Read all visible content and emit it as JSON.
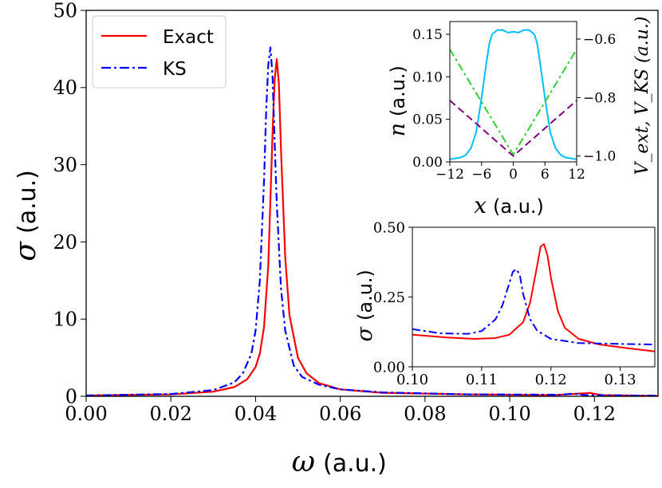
{
  "chart_data": [
    {
      "name": "main",
      "type": "line",
      "title": "",
      "xlabel_symbol": "ω",
      "xlabel_unit": "(a.u.)",
      "ylabel_symbol": "σ",
      "ylabel_unit": "(a.u.)",
      "xlim": [
        0.0,
        0.135
      ],
      "ylim": [
        0,
        50
      ],
      "xticks": [
        0.0,
        0.02,
        0.04,
        0.06,
        0.08,
        0.1,
        0.12
      ],
      "xtick_labels": [
        "0.00",
        "0.02",
        "0.04",
        "0.06",
        "0.08",
        "0.10",
        "0.12"
      ],
      "yticks": [
        0,
        10,
        20,
        30,
        40,
        50
      ],
      "ytick_labels": [
        "0",
        "10",
        "20",
        "30",
        "40",
        "50"
      ],
      "legend": {
        "placement": "top-left",
        "entries": [
          "Exact",
          "KS"
        ]
      },
      "series": [
        {
          "name": "Exact",
          "color": "#ff0000",
          "style": "solid",
          "x": [
            0.0,
            0.02,
            0.03,
            0.035,
            0.038,
            0.04,
            0.041,
            0.042,
            0.043,
            0.044,
            0.0445,
            0.045,
            0.0455,
            0.046,
            0.047,
            0.048,
            0.05,
            0.052,
            0.055,
            0.06,
            0.07,
            0.09,
            0.11,
            0.115,
            0.118,
            0.119,
            0.12,
            0.122,
            0.135
          ],
          "values": [
            0.1,
            0.25,
            0.6,
            1.2,
            2.2,
            3.8,
            5.5,
            9.0,
            17.0,
            34.0,
            41.0,
            43.7,
            40.5,
            32.0,
            18.0,
            10.5,
            5.0,
            3.0,
            1.7,
            0.9,
            0.45,
            0.25,
            0.15,
            0.3,
            0.4,
            0.44,
            0.32,
            0.15,
            0.06
          ]
        },
        {
          "name": "KS",
          "color": "#0000ff",
          "style": "dashdot",
          "x": [
            0.0,
            0.02,
            0.03,
            0.035,
            0.037,
            0.039,
            0.04,
            0.041,
            0.042,
            0.0425,
            0.043,
            0.0435,
            0.044,
            0.0445,
            0.045,
            0.046,
            0.047,
            0.049,
            0.051,
            0.055,
            0.06,
            0.07,
            0.09,
            0.112,
            0.115,
            0.118,
            0.135
          ],
          "values": [
            0.1,
            0.3,
            0.8,
            1.8,
            3.0,
            5.5,
            8.5,
            15.0,
            28.0,
            37.0,
            43.0,
            45.2,
            41.5,
            33.0,
            25.0,
            14.0,
            8.5,
            4.0,
            2.5,
            1.5,
            0.9,
            0.5,
            0.25,
            0.2,
            0.35,
            0.15,
            0.08
          ]
        }
      ]
    },
    {
      "name": "inset_density",
      "type": "line",
      "xlabel_symbol": "x",
      "xlabel_unit": "(a.u.)",
      "ylabel_symbol": "n",
      "ylabel_unit": "(a.u.)",
      "ylabel_right": "V_ext, V_KS (a.u.)",
      "xlim": [
        -12,
        12
      ],
      "ylim": [
        0.0,
        0.165
      ],
      "ylim_right": [
        -1.02,
        -0.54
      ],
      "xticks": [
        -12,
        -6,
        0,
        6,
        12
      ],
      "xtick_labels": [
        "−12",
        "−6",
        "0",
        "6",
        "12"
      ],
      "yticks": [
        0.0,
        0.05,
        0.1,
        0.15
      ],
      "ytick_labels": [
        "0.00",
        "0.05",
        "0.10",
        "0.15"
      ],
      "yticks_right": [
        -1.0,
        -0.8,
        -0.6
      ],
      "ytick_labels_right": [
        "−1.0",
        "−0.8",
        "−0.6"
      ],
      "series": [
        {
          "name": "n",
          "axis": "left",
          "color": "#00bfff",
          "style": "solid",
          "x": [
            -12,
            -10,
            -9,
            -8,
            -7,
            -6,
            -5,
            -4.5,
            -4,
            -3,
            -2,
            -1,
            0,
            1,
            2,
            3,
            4,
            4.5,
            5,
            6,
            7,
            8,
            9,
            10,
            12
          ],
          "values": [
            0.003,
            0.005,
            0.008,
            0.016,
            0.035,
            0.075,
            0.12,
            0.14,
            0.15,
            0.155,
            0.155,
            0.152,
            0.153,
            0.152,
            0.155,
            0.155,
            0.15,
            0.14,
            0.12,
            0.075,
            0.035,
            0.016,
            0.008,
            0.005,
            0.003
          ]
        },
        {
          "name": "V_ext",
          "axis": "right",
          "color": "#32cd32",
          "style": "dashdot",
          "x": [
            -12,
            0,
            12
          ],
          "values": [
            -0.635,
            -0.995,
            -0.635
          ]
        },
        {
          "name": "V_KS",
          "axis": "right",
          "color": "#800080",
          "style": "dashed",
          "x": [
            -12,
            0,
            12
          ],
          "values": [
            -0.81,
            -1.0,
            -0.81
          ]
        }
      ]
    },
    {
      "name": "inset_zoom",
      "type": "line",
      "ylabel_symbol": "σ",
      "ylabel_unit": "(a.u.)",
      "xlim": [
        0.1,
        0.135
      ],
      "ylim": [
        0.0,
        0.5
      ],
      "xticks": [
        0.1,
        0.11,
        0.12,
        0.13
      ],
      "xtick_labels": [
        "0.10",
        "0.11",
        "0.12",
        "0.13"
      ],
      "yticks": [
        0.0,
        0.25,
        0.5
      ],
      "ytick_labels": [
        "0.00",
        "0.25",
        "0.50"
      ],
      "series": [
        {
          "name": "Exact",
          "color": "#ff0000",
          "style": "solid",
          "x": [
            0.1,
            0.105,
            0.109,
            0.112,
            0.114,
            0.116,
            0.117,
            0.118,
            0.1185,
            0.119,
            0.1195,
            0.12,
            0.121,
            0.122,
            0.124,
            0.127,
            0.13,
            0.135
          ],
          "values": [
            0.115,
            0.105,
            0.1,
            0.103,
            0.115,
            0.16,
            0.23,
            0.36,
            0.43,
            0.44,
            0.4,
            0.32,
            0.2,
            0.14,
            0.1,
            0.08,
            0.07,
            0.055
          ]
        },
        {
          "name": "KS",
          "color": "#0000ff",
          "style": "dashdot",
          "x": [
            0.1,
            0.104,
            0.108,
            0.11,
            0.112,
            0.113,
            0.114,
            0.1145,
            0.115,
            0.1155,
            0.116,
            0.117,
            0.118,
            0.12,
            0.124,
            0.13,
            0.135
          ],
          "values": [
            0.135,
            0.12,
            0.118,
            0.128,
            0.17,
            0.22,
            0.3,
            0.34,
            0.35,
            0.33,
            0.26,
            0.17,
            0.13,
            0.1,
            0.085,
            0.082,
            0.08
          ]
        }
      ]
    }
  ]
}
